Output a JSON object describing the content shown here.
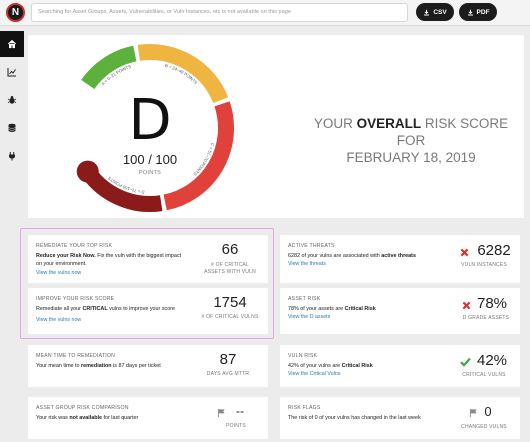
{
  "header": {
    "logo_letter": "N",
    "search_placeholder": "Searching for Asset Groups, Assets, Vulnerabilities, or Vuln Instances, etc is not available on this page",
    "csv_label": "CSV",
    "pdf_label": "PDF"
  },
  "sidebar": {
    "items": [
      {
        "icon": "home-icon",
        "active": true
      },
      {
        "icon": "chart-icon",
        "active": false
      },
      {
        "icon": "bug-icon",
        "active": false
      },
      {
        "icon": "database-icon",
        "active": false
      },
      {
        "icon": "plug-icon",
        "active": false
      }
    ]
  },
  "gauge": {
    "grade": "D",
    "score": "100 / 100",
    "score_label": "POINTS",
    "score_fraction": 1.0,
    "bands": [
      {
        "label": "A = 0–21 POINTS",
        "color": "#5cb13c"
      },
      {
        "label": "B = 24–40 POINTS",
        "color": "#f0b441"
      },
      {
        "label": "C = 51–70 POINTS",
        "color": "#e0413a"
      },
      {
        "label": "D = 71–100 POINTS",
        "color": "#8b1a1a"
      }
    ],
    "title_pre": "YOUR ",
    "title_bold": "OVERALL",
    "title_post": " RISK SCORE FOR",
    "title_date": "FEBRUARY 18, 2019"
  },
  "cards": {
    "remediate_top": {
      "title": "REMEDIATE YOUR TOP RISK",
      "desc_bold": "Reduce your Risk Now.",
      "desc": " Fix the vuln with the biggest impact on your environment.",
      "link": "View the vulns now",
      "value": "66",
      "unit_line1": "# OF CRITICAL",
      "unit_line2": "ASSETS WITH VULN"
    },
    "improve_score": {
      "title": "IMPROVE YOUR RISK SCORE",
      "desc_pre": "Remediate all your ",
      "desc_bold": "CRITICAL",
      "desc_post": " vulns to improve your score",
      "link": "View the vulns now",
      "value": "1754",
      "unit_line1": "# OF CRITICAL VULNS"
    },
    "active_threats": {
      "title": "ACTIVE THREATS",
      "desc_pre": "6282 of your vulns are associated with ",
      "desc_bold": "active threats",
      "link": "View the threats",
      "value": "6282",
      "unit_line1": "VULN INSTANCES",
      "status_color": "#d9342b"
    },
    "asset_risk": {
      "title": "ASSET RISK",
      "desc_pre": "78% of your assets are ",
      "desc_bold": "Critical Risk",
      "link": "View the D assets",
      "value": "78%",
      "unit_line1": "D GRADE ASSETS",
      "status_color": "#d9342b"
    },
    "mttr": {
      "title": "MEAN TIME TO REMEDIATION",
      "desc_pre": "Your mean time to ",
      "desc_bold": "remediation",
      "desc_post": " is 87 days per ticket",
      "value": "87",
      "unit_line1": "DAYS AVG MTTR"
    },
    "vuln_risk": {
      "title": "VULN RISK",
      "desc_pre": "42% of your vulns are ",
      "desc_bold": "Critical Risk",
      "link": "View the Critical Vulns",
      "value": "42%",
      "unit_line1": "CRITICAL VULNS",
      "status_color": "#3aa843"
    },
    "asset_group": {
      "title": "ASSET GROUP RISK COMPARISON",
      "desc_pre": "Your risk was ",
      "desc_bold": "not available",
      "desc_post": " for last quarter",
      "value": "--",
      "unit_line1": "POINTS"
    },
    "risk_flags": {
      "title": "RISK FLAGS",
      "desc": "The risk of 0 of your vulns has changed in the last week",
      "value": "0",
      "unit_line1": "CHANGED VULNS"
    }
  }
}
